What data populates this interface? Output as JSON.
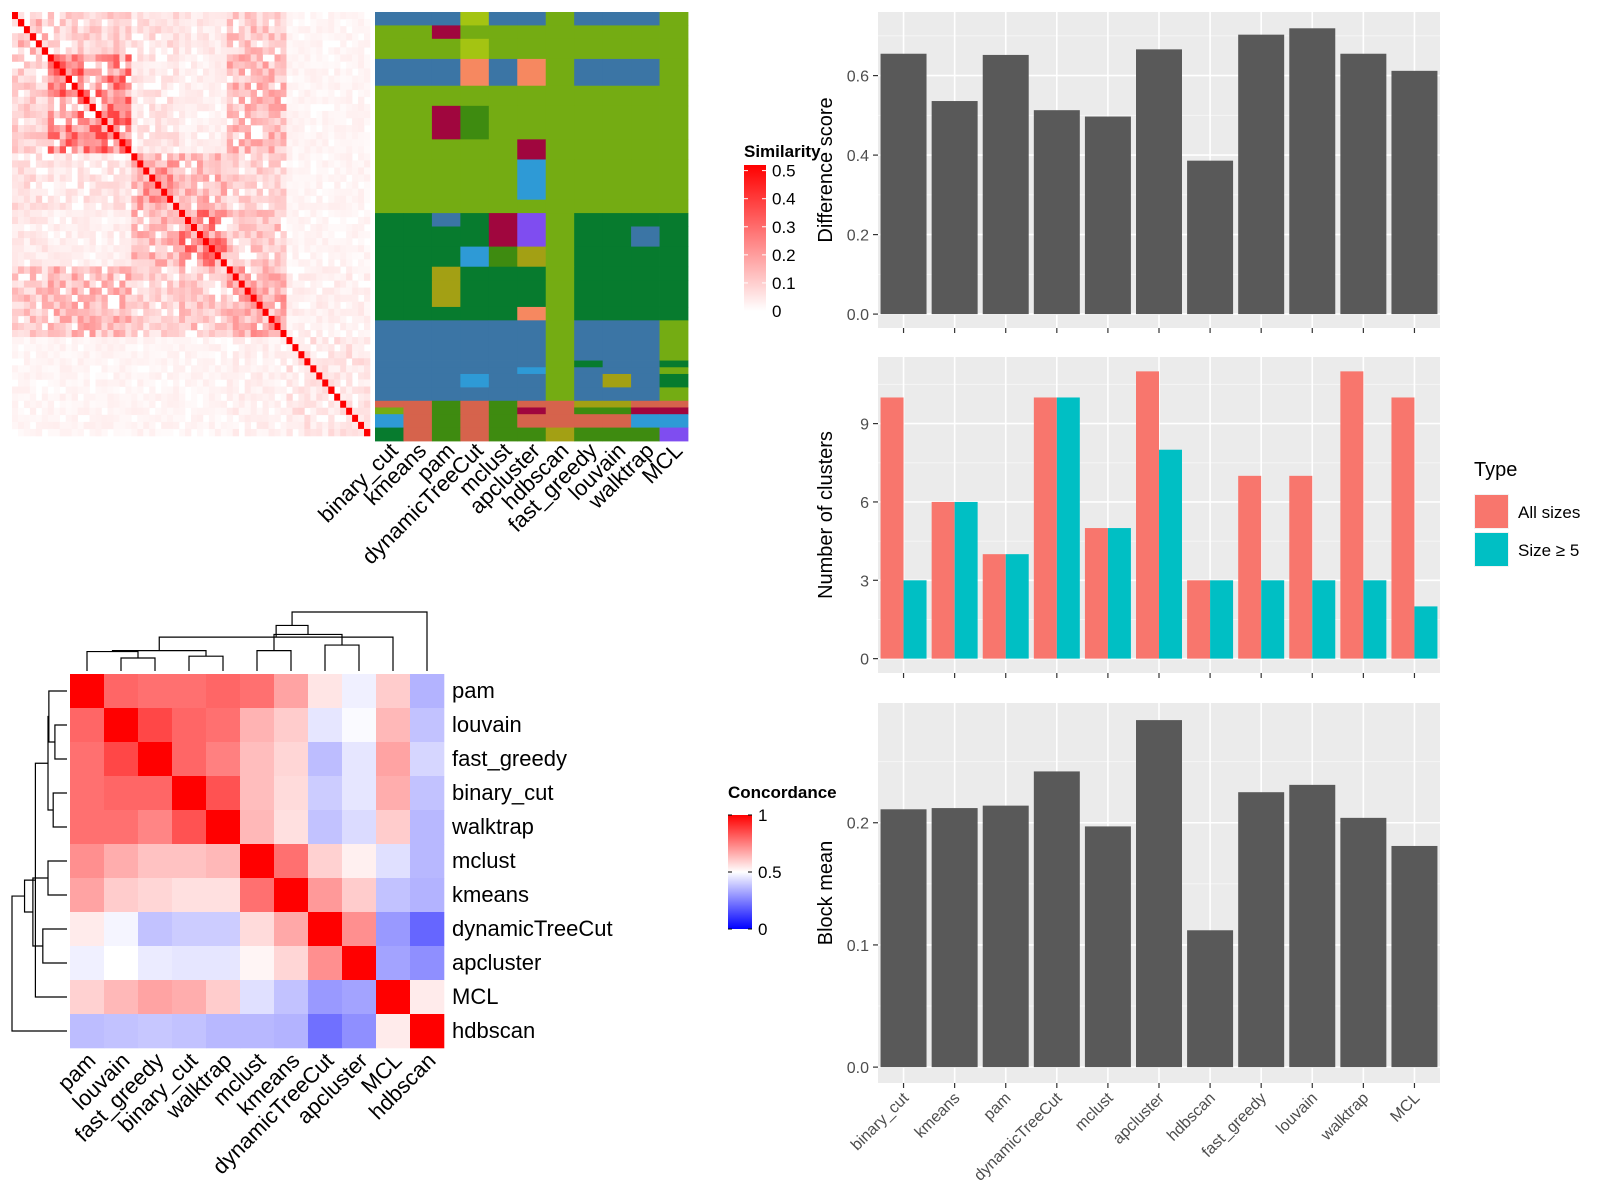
{
  "chart_data": [
    {
      "type": "heatmap",
      "id": "similarity-heatmap",
      "legend": {
        "title": "Similarity",
        "ticks": [
          "0.5",
          "0.4",
          "0.3",
          "0.2",
          "0.1",
          "0"
        ],
        "tick_values": [
          0.5,
          0.4,
          0.3,
          0.2,
          0.1,
          0
        ],
        "range": [
          0,
          0.52
        ],
        "color_low": "#ffffff",
        "color_high": "#ff0000"
      },
      "n": 60,
      "blocks": [
        {
          "start": 0,
          "end": 6,
          "within": 0.13
        },
        {
          "start": 6,
          "end": 20,
          "within": 0.22
        },
        {
          "start": 20,
          "end": 28,
          "within": 0.16
        },
        {
          "start": 28,
          "end": 36,
          "within": 0.2
        },
        {
          "start": 36,
          "end": 46,
          "within": 0.14
        },
        {
          "start": 46,
          "end": 60,
          "within": 0.05
        }
      ],
      "between": [
        [
          1,
          0.08,
          0.06,
          0.04,
          0.1,
          0.02
        ],
        [
          0.08,
          1,
          0.05,
          0.03,
          0.12,
          0.02
        ],
        [
          0.06,
          0.05,
          1,
          0.12,
          0.08,
          0.02
        ],
        [
          0.04,
          0.03,
          0.12,
          1,
          0.1,
          0.02
        ],
        [
          0.1,
          0.12,
          0.08,
          0.1,
          1,
          0.03
        ],
        [
          0.02,
          0.02,
          0.02,
          0.02,
          0.03,
          1
        ]
      ]
    },
    {
      "type": "heatmap",
      "id": "cluster-assignment-heatmap",
      "columns": [
        "binary_cut",
        "kmeans",
        "pam",
        "dynamicTreeCut",
        "mclust",
        "apcluster",
        "hdbscan",
        "fast_greedy",
        "louvain",
        "walktrap",
        "MCL"
      ],
      "palette": {
        "A": "#74ac13",
        "B": "#077b2e",
        "C": "#3b75a5",
        "D": "#d6634c",
        "E": "#ffffff",
        "F": "#a0063e",
        "G": "#a3a014",
        "H": "#2e9ad6",
        "I": "#7f4df0",
        "J": "#f68860",
        "K": "#a4c412",
        "L": "#3e8b10"
      },
      "segments": [
        {
          "rows": 2,
          "codes": [
            "C",
            "C",
            "C",
            "K",
            "C",
            "C",
            "A",
            "C",
            "C",
            "C",
            "A"
          ]
        },
        {
          "rows": 2,
          "codes": [
            "A",
            "A",
            "F",
            "A",
            "A",
            "A",
            "A",
            "A",
            "A",
            "A",
            "A"
          ]
        },
        {
          "rows": 3,
          "codes": [
            "A",
            "A",
            "A",
            "K",
            "A",
            "A",
            "A",
            "A",
            "A",
            "A",
            "A"
          ]
        },
        {
          "rows": 4,
          "codes": [
            "C",
            "C",
            "C",
            "J",
            "C",
            "J",
            "A",
            "C",
            "C",
            "C",
            "A"
          ]
        },
        {
          "rows": 3,
          "codes": [
            "A",
            "A",
            "A",
            "A",
            "A",
            "A",
            "A",
            "A",
            "A",
            "A",
            "A"
          ]
        },
        {
          "rows": 5,
          "codes": [
            "A",
            "A",
            "F",
            "L",
            "A",
            "A",
            "A",
            "A",
            "A",
            "A",
            "A"
          ]
        },
        {
          "rows": 3,
          "codes": [
            "A",
            "A",
            "A",
            "A",
            "A",
            "F",
            "A",
            "A",
            "A",
            "A",
            "A"
          ]
        },
        {
          "rows": 6,
          "codes": [
            "A",
            "A",
            "A",
            "A",
            "A",
            "H",
            "A",
            "A",
            "A",
            "A",
            "A"
          ]
        },
        {
          "rows": 2,
          "codes": [
            "A",
            "A",
            "A",
            "A",
            "A",
            "A",
            "A",
            "A",
            "A",
            "A",
            "A"
          ]
        },
        {
          "rows": 2,
          "codes": [
            "B",
            "B",
            "C",
            "B",
            "F",
            "I",
            "A",
            "B",
            "B",
            "B",
            "B"
          ]
        },
        {
          "rows": 3,
          "codes": [
            "B",
            "B",
            "B",
            "B",
            "F",
            "I",
            "A",
            "B",
            "B",
            "C",
            "B"
          ]
        },
        {
          "rows": 3,
          "codes": [
            "B",
            "B",
            "B",
            "H",
            "L",
            "G",
            "A",
            "B",
            "B",
            "B",
            "B"
          ]
        },
        {
          "rows": 2,
          "codes": [
            "B",
            "B",
            "G",
            "B",
            "B",
            "B",
            "A",
            "B",
            "B",
            "B",
            "B"
          ]
        },
        {
          "rows": 4,
          "codes": [
            "B",
            "B",
            "G",
            "B",
            "B",
            "B",
            "A",
            "B",
            "B",
            "B",
            "B"
          ]
        },
        {
          "rows": 2,
          "codes": [
            "B",
            "B",
            "B",
            "B",
            "B",
            "J",
            "A",
            "B",
            "B",
            "B",
            "B"
          ]
        },
        {
          "rows": 6,
          "codes": [
            "C",
            "C",
            "C",
            "C",
            "C",
            "C",
            "A",
            "C",
            "C",
            "C",
            "A"
          ]
        },
        {
          "rows": 1,
          "codes": [
            "C",
            "C",
            "C",
            "C",
            "C",
            "C",
            "A",
            "B",
            "C",
            "C",
            "B"
          ]
        },
        {
          "rows": 1,
          "codes": [
            "C",
            "C",
            "C",
            "C",
            "C",
            "H",
            "A",
            "C",
            "C",
            "C",
            "A"
          ]
        },
        {
          "rows": 2,
          "codes": [
            "C",
            "C",
            "C",
            "H",
            "C",
            "C",
            "A",
            "C",
            "G",
            "C",
            "B"
          ]
        },
        {
          "rows": 2,
          "codes": [
            "C",
            "C",
            "C",
            "C",
            "C",
            "C",
            "A",
            "C",
            "C",
            "C",
            "A"
          ]
        },
        {
          "rows": 1,
          "codes": [
            "D",
            "D",
            "L",
            "D",
            "L",
            "D",
            "D",
            "G",
            "G",
            "D",
            "D"
          ]
        },
        {
          "rows": 1,
          "codes": [
            "A",
            "D",
            "L",
            "D",
            "L",
            "F",
            "D",
            "L",
            "L",
            "F",
            "F"
          ]
        },
        {
          "rows": 2,
          "codes": [
            "H",
            "D",
            "L",
            "D",
            "L",
            "D",
            "D",
            "D",
            "D",
            "H",
            "H"
          ]
        },
        {
          "rows": 2,
          "codes": [
            "B",
            "D",
            "L",
            "D",
            "L",
            "L",
            "G",
            "L",
            "L",
            "L",
            "I"
          ]
        }
      ]
    },
    {
      "type": "heatmap",
      "id": "concordance-heatmap",
      "rows": [
        "pam",
        "louvain",
        "fast_greedy",
        "binary_cut",
        "walktrap",
        "mclust",
        "kmeans",
        "dynamicTreeCut",
        "apcluster",
        "MCL",
        "hdbscan"
      ],
      "columns": [
        "pam",
        "louvain",
        "fast_greedy",
        "binary_cut",
        "walktrap",
        "mclust",
        "kmeans",
        "dynamicTreeCut",
        "apcluster",
        "MCL",
        "hdbscan"
      ],
      "values": [
        [
          1.0,
          0.8,
          0.78,
          0.78,
          0.8,
          0.78,
          0.68,
          0.55,
          0.47,
          0.6,
          0.35
        ],
        [
          0.8,
          1.0,
          0.86,
          0.8,
          0.78,
          0.65,
          0.6,
          0.45,
          0.49,
          0.64,
          0.38
        ],
        [
          0.78,
          0.86,
          1.0,
          0.8,
          0.75,
          0.63,
          0.58,
          0.37,
          0.45,
          0.68,
          0.42
        ],
        [
          0.78,
          0.8,
          0.8,
          1.0,
          0.84,
          0.63,
          0.57,
          0.4,
          0.45,
          0.66,
          0.38
        ],
        [
          0.78,
          0.78,
          0.74,
          0.84,
          1.0,
          0.64,
          0.56,
          0.38,
          0.43,
          0.6,
          0.36
        ],
        [
          0.72,
          0.66,
          0.62,
          0.62,
          0.64,
          1.0,
          0.78,
          0.59,
          0.53,
          0.44,
          0.36
        ],
        [
          0.68,
          0.6,
          0.58,
          0.56,
          0.56,
          0.78,
          1.0,
          0.7,
          0.6,
          0.38,
          0.35
        ],
        [
          0.54,
          0.48,
          0.38,
          0.4,
          0.4,
          0.57,
          0.67,
          1.0,
          0.72,
          0.3,
          0.2
        ],
        [
          0.47,
          0.5,
          0.46,
          0.45,
          0.45,
          0.52,
          0.58,
          0.72,
          1.0,
          0.32,
          0.28
        ],
        [
          0.59,
          0.64,
          0.68,
          0.66,
          0.6,
          0.44,
          0.38,
          0.3,
          0.32,
          1.0,
          0.54
        ],
        [
          0.37,
          0.38,
          0.39,
          0.38,
          0.36,
          0.36,
          0.35,
          0.22,
          0.28,
          0.54,
          1.0
        ]
      ],
      "legend": {
        "title": "Concordance",
        "ticks": [
          "1",
          "0.5",
          "0"
        ],
        "tick_values": [
          1,
          0.5,
          0
        ],
        "color_low": "#0000ff",
        "color_mid": "#ffffff",
        "color_high": "#ff0000"
      }
    },
    {
      "type": "bar",
      "id": "difference-score-chart",
      "categories": [
        "binary_cut",
        "kmeans",
        "pam",
        "dynamicTreeCut",
        "mclust",
        "apcluster",
        "hdbscan",
        "fast_greedy",
        "louvain",
        "walktrap",
        "MCL"
      ],
      "values": [
        0.655,
        0.536,
        0.652,
        0.513,
        0.497,
        0.666,
        0.386,
        0.703,
        0.719,
        0.655,
        0.612
      ],
      "ylabel": "Difference score",
      "ylim": [
        -0.035,
        0.76
      ],
      "yticks": [
        0,
        0.2,
        0.4,
        0.6
      ],
      "ytick_labels": [
        "0.0",
        "0.2",
        "0.4",
        "0.6"
      ],
      "grid": true,
      "bar_color": "#595959",
      "panel_color": "#ebebeb"
    },
    {
      "type": "bar",
      "id": "number-of-clusters-chart",
      "categories": [
        "binary_cut",
        "kmeans",
        "pam",
        "dynamicTreeCut",
        "mclust",
        "apcluster",
        "hdbscan",
        "fast_greedy",
        "louvain",
        "walktrap",
        "MCL"
      ],
      "series": [
        {
          "name": "All sizes",
          "values": [
            10,
            6,
            4,
            10,
            5,
            11,
            3,
            7,
            7,
            11,
            10
          ],
          "color": "#f8766d"
        },
        {
          "name": "Size ≥ 5",
          "values": [
            3,
            6,
            4,
            10,
            5,
            8,
            3,
            3,
            3,
            3,
            2
          ],
          "color": "#00bfc4"
        }
      ],
      "ylabel": "Number of clusters",
      "ylim": [
        -0.55,
        11.55
      ],
      "yticks": [
        0,
        3,
        6,
        9
      ],
      "ytick_labels": [
        "0",
        "3",
        "6",
        "9"
      ],
      "grid": true,
      "legend": {
        "title": "Type",
        "position": "right"
      },
      "panel_color": "#ebebeb"
    },
    {
      "type": "bar",
      "id": "block-mean-chart",
      "categories": [
        "binary_cut",
        "kmeans",
        "pam",
        "dynamicTreeCut",
        "mclust",
        "apcluster",
        "hdbscan",
        "fast_greedy",
        "louvain",
        "walktrap",
        "MCL"
      ],
      "values": [
        0.211,
        0.212,
        0.214,
        0.242,
        0.197,
        0.284,
        0.112,
        0.225,
        0.231,
        0.204,
        0.181
      ],
      "ylabel": "Block mean",
      "ylim": [
        -0.013,
        0.298
      ],
      "yticks": [
        0,
        0.1,
        0.2
      ],
      "ytick_labels": [
        "0.0",
        "0.1",
        "0.2"
      ],
      "grid": true,
      "bar_color": "#595959",
      "panel_color": "#ebebeb"
    }
  ]
}
